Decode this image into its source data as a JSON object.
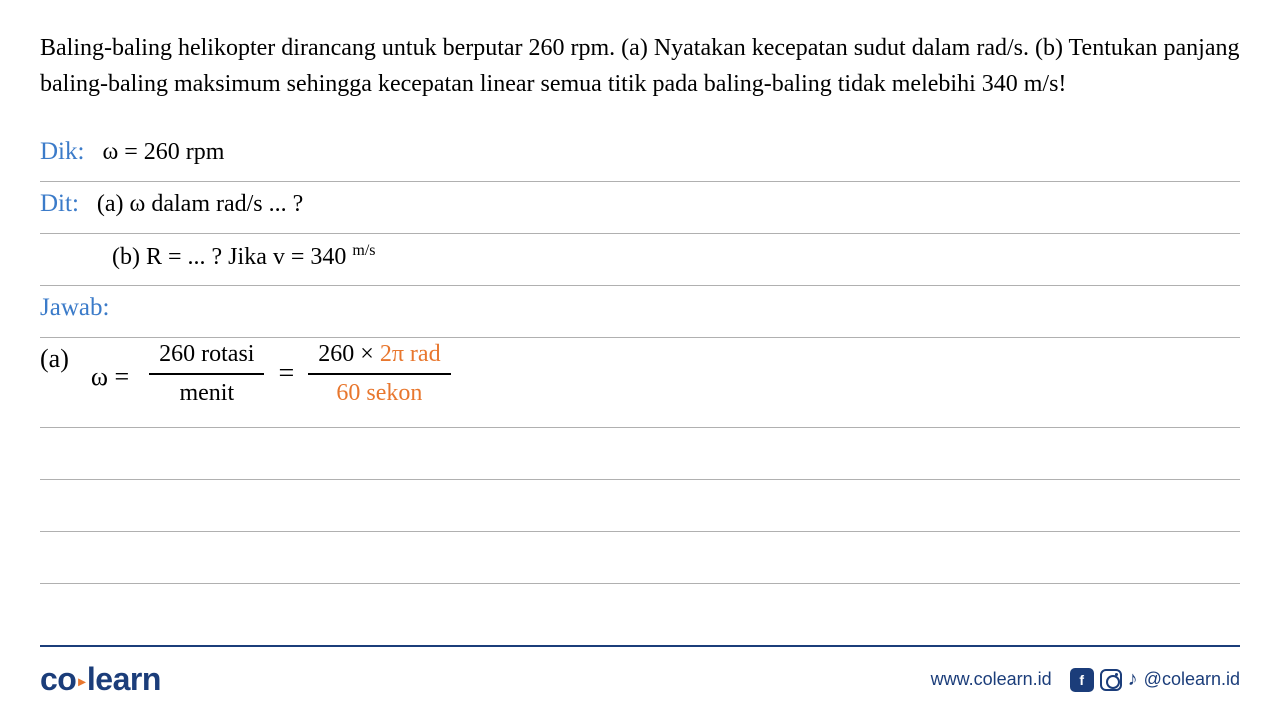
{
  "problem": {
    "text": "Baling-baling helikopter dirancang untuk berputar 260 rpm. (a) Nyatakan kecepatan sudut dalam rad/s. (b) Tentukan panjang baling-baling maksimum sehingga kecepatan linear semua titik pada baling-baling tidak melebihi 340 m/s!",
    "fontsize": 24,
    "color": "#000000"
  },
  "dik": {
    "label": "Dik:",
    "content": "ω = 260 rpm"
  },
  "dit": {
    "label": "Dit:",
    "line1": "(a) ω dalam rad/s ... ?",
    "line2_prefix": "(b)  R = ... ?   Jika   v = 340 ",
    "line2_unit": "m/s"
  },
  "jawab": {
    "label": "Jawab:"
  },
  "solution_a": {
    "part_label": "(a)",
    "omega": "ω =",
    "frac1_top": "260 rotasi",
    "frac1_bot": "menit",
    "equals": "=",
    "frac2_top_black": "260 ×",
    "frac2_top_orange": " 2π rad",
    "frac2_bot_orange": "60 sekon"
  },
  "colors": {
    "blue_label": "#3b7bc9",
    "orange": "#e8772e",
    "brand_blue": "#1b3d7a",
    "text": "#000000",
    "rule": "#b0b0b0",
    "background": "#ffffff"
  },
  "footer": {
    "logo_co": "co",
    "logo_learn": "learn",
    "url": "www.colearn.id",
    "handle": "@colearn.id"
  }
}
